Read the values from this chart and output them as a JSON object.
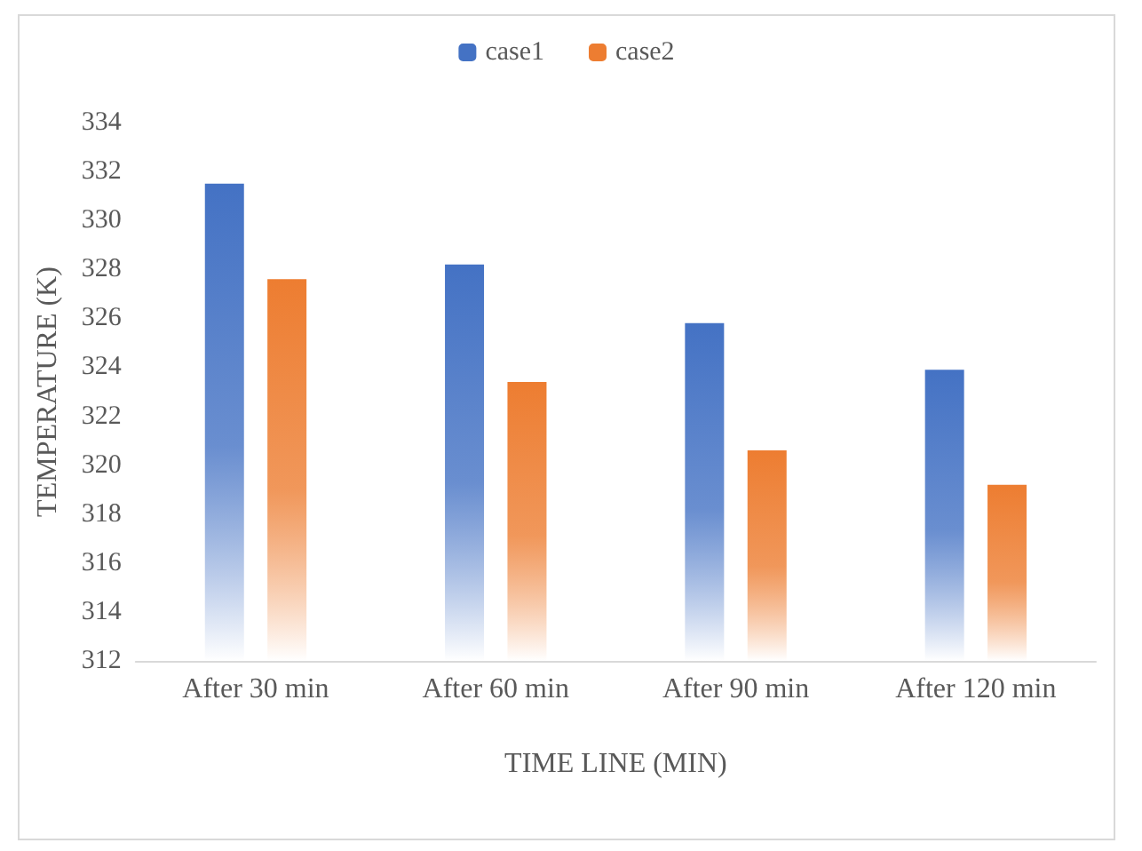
{
  "chart_data": {
    "type": "bar",
    "xlabel": "TIME LINE (MIN)",
    "ylabel": "TEMPERATURE (K)",
    "categories": [
      "After 30 min",
      "After 60 min",
      "After 90 min",
      "After 120 min"
    ],
    "series": [
      {
        "name": "case1",
        "color": "#4472c4",
        "values": [
          331.5,
          328.2,
          325.8,
          323.9
        ]
      },
      {
        "name": "case2",
        "color": "#ed7d31",
        "values": [
          327.6,
          323.4,
          320.6,
          319.2
        ]
      }
    ],
    "ylim": [
      312,
      334
    ],
    "yticks": [
      312,
      314,
      316,
      318,
      320,
      322,
      324,
      326,
      328,
      330,
      332,
      334
    ],
    "grid": false,
    "legend": "top"
  }
}
